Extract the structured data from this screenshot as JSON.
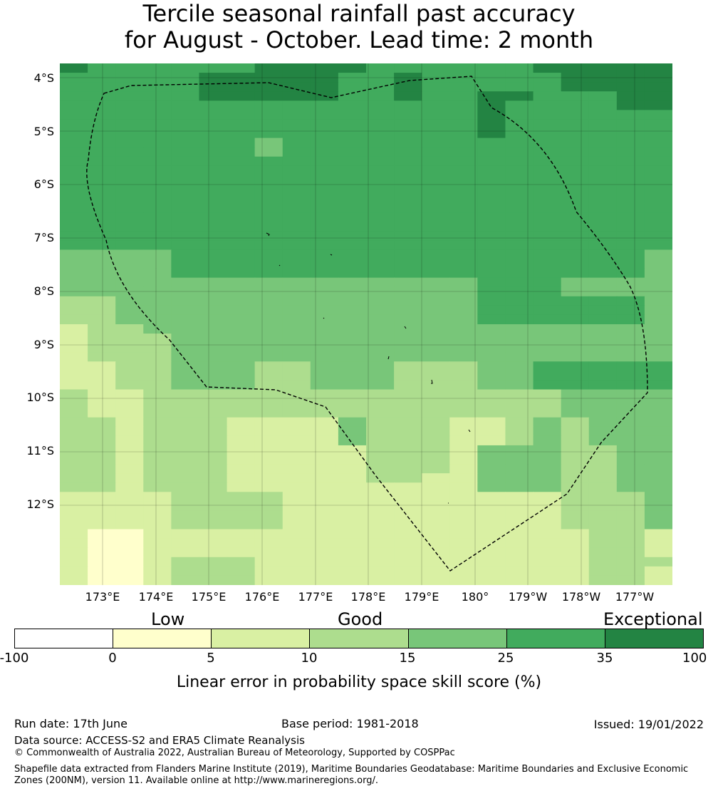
{
  "title": {
    "line1": "Tercile seasonal rainfall past accuracy",
    "line2": "for August - October. Lead time: 2 month"
  },
  "map": {
    "lat_labels": [
      "4°S",
      "5°S",
      "6°S",
      "7°S",
      "8°S",
      "9°S",
      "10°S",
      "11°S",
      "12°S"
    ],
    "lon_labels": [
      "173°E",
      "174°E",
      "175°E",
      "176°E",
      "177°E",
      "178°E",
      "179°E",
      "180°",
      "179°W",
      "178°W",
      "177°W"
    ],
    "boundary_style": "dashed",
    "grid": "on",
    "cell_classes": [
      "6555555666655555566666",
      "5555566666556555556666",
      "5555566666556555556666",
      "5555566666556556655566",
      "5555555555555556555566",
      "5555555555555556555555",
      "5555555555555556555555",
      "5555555555555556555555",
      "5555555455555555555555",
      "5555555455555555555555",
      "5555555555555555555555",
      "5555555555555555555555",
      "5555555555555555555555",
      "5555555555555555555555",
      "5555555555555555555555",
      "5555555555555555555555",
      "5555555555555555555555",
      "5555555555555555555555",
      "5555555555555555555555",
      "5555555555555555555555",
      "4444555555555555555554",
      "4444555555555555555554",
      "4444555555555555555554",
      "4444444444444445554444",
      "4444444444444445554444",
      "3344444444444445555554",
      "3344444444444445555554",
      "3344444444444445555554",
      "2334444444444444444444",
      "2333444444444444444444",
      "2333444444444444444444",
      "2333444444444444444444",
      "2233444334443334455555",
      "2233444334443334455555",
      "2233444334443334455555",
      "3223333333333333334444",
      "3223333333333333334444",
      "3223333333333333334444",
      "3323332222433322343444",
      "3323332222433322343444",
      "3323332222433322343444",
      "3323332222233324443344",
      "3323332222233324443344",
      "3323332222233324443344",
      "3323332222233224443344",
      "3323332222222224443344",
      "2222333322222222223334",
      "2222333322222222223334",
      "2222333322222222223334",
      "2222333322222222223334",
      "2112222222222222222332",
      "2112222222222222222332",
      "2112222222222222222332",
      "2112333222222222222333",
      "2112333222222222222332",
      "2112333222222222222332"
    ]
  },
  "legend": {
    "categories": [
      "Low",
      "Good",
      "Exceptional"
    ],
    "ticks": [
      "-100",
      "0",
      "5",
      "10",
      "15",
      "25",
      "35",
      "100"
    ],
    "colors": [
      "#ffffff",
      "#ffffcc",
      "#d9f0a3",
      "#addd8e",
      "#78c679",
      "#41ab5d",
      "#238443"
    ],
    "label": "Linear error in probability space skill score (%)"
  },
  "footer": {
    "run_date": "Run date: 17th June",
    "base_period": "Base period: 1981-2018",
    "issued": "Issued: 19/01/2022",
    "data_source": "Data source: ACCESS-S2 and ERA5 Climate Reanalysis",
    "copyright": "© Commonwealth of Australia 2022, Australian Bureau of Meteorology, Supported by COSPPac",
    "shapefile": "Shapefile data extracted from Flanders Marine Institute (2019), Maritime Boundaries Geodatabase: Maritime Boundaries and Exclusive Economic Zones (200NM), version 11. Available online at http://www.marineregions.org/."
  }
}
